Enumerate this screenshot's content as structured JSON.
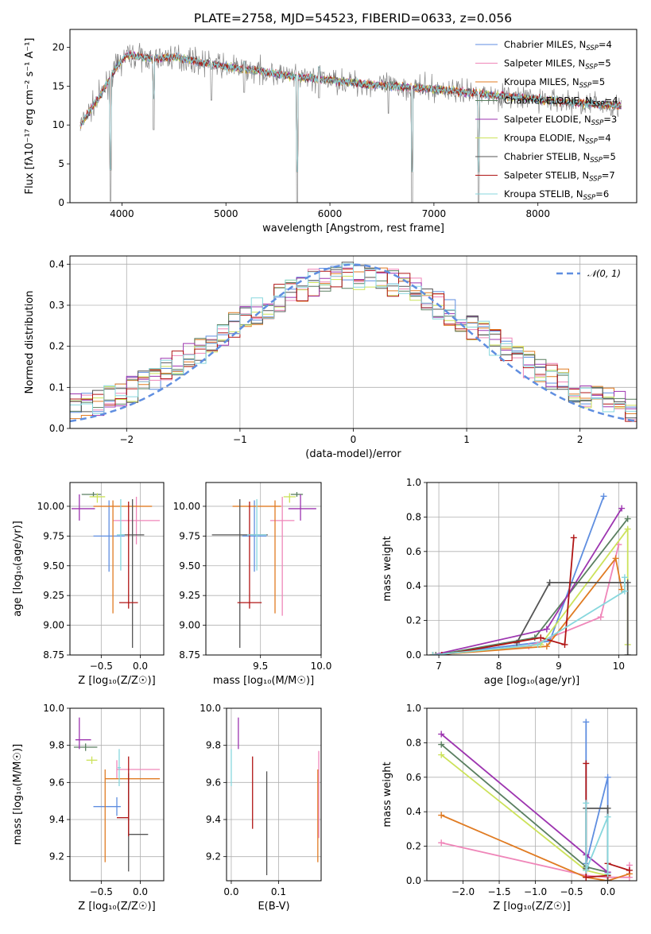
{
  "colors": {
    "Chabrier MILES": "#5f8ee0",
    "Salpeter MILES": "#ef86b9",
    "Kroupa MILES": "#e07b22",
    "Chabrier ELODIE": "#5a7f60",
    "Salpeter ELODIE": "#9d35b0",
    "Kroupa ELODIE": "#cce25a",
    "Chabrier STELIB": "#555555",
    "Salpeter STELIB": "#b01515",
    "Kroupa STELIB": "#87d7dd"
  },
  "chart_data": [
    {
      "id": "spectrum",
      "type": "line",
      "title": "PLATE=2758, MJD=54523, FIBERID=0633, z=0.056",
      "xlabel": "wavelength [Angstrom, rest frame]",
      "ylabel": "Flux [fλ10⁻¹⁷ erg cm⁻² s⁻¹ A⁻¹]",
      "xlim": [
        3500,
        8950
      ],
      "ylim": [
        0,
        22.3
      ],
      "xticks": [
        4000,
        5000,
        6000,
        7000,
        8000
      ],
      "yticks": [
        0,
        5,
        10,
        15,
        20
      ],
      "grid": false,
      "legend_position": "top-right",
      "data_series": {
        "name": "data",
        "color": "#808080"
      },
      "series": [
        {
          "name": "Chabrier MILES",
          "nssp": "4"
        },
        {
          "name": "Salpeter MILES",
          "nssp": "5"
        },
        {
          "name": "Kroupa MILES",
          "nssp": "5"
        },
        {
          "name": "Chabrier ELODIE",
          "nssp": "4"
        },
        {
          "name": "Salpeter ELODIE",
          "nssp": "3"
        },
        {
          "name": "Kroupa ELODIE",
          "nssp": "4"
        },
        {
          "name": "Chabrier STELIB",
          "nssp": "5"
        },
        {
          "name": "Salpeter STELIB",
          "nssp": "7"
        },
        {
          "name": "Kroupa STELIB",
          "nssp": "6"
        }
      ],
      "continuum": {
        "x": [
          3600,
          3700,
          3800,
          3950,
          4050,
          4300,
          4500,
          4800,
          5000,
          5300,
          5600,
          6000,
          6400,
          6800,
          7200,
          7600,
          8000,
          8400,
          8800
        ],
        "y": [
          10.0,
          12.0,
          14.0,
          17.5,
          19.0,
          18.5,
          18.8,
          18.0,
          17.5,
          17.0,
          16.3,
          15.8,
          15.2,
          14.8,
          14.4,
          13.8,
          13.3,
          12.8,
          12.5
        ]
      },
      "features": [
        {
          "x": 3890,
          "y": 0.2
        },
        {
          "x": 4305,
          "y": 9.4
        },
        {
          "x": 4860,
          "y": 13.2
        },
        {
          "x": 5175,
          "y": 14.2
        },
        {
          "x": 5685,
          "y": 0.0
        },
        {
          "x": 5895,
          "y": 13.5
        },
        {
          "x": 6563,
          "y": 11.5
        },
        {
          "x": 6790,
          "y": 0.0
        },
        {
          "x": 7430,
          "y": 0.0
        }
      ]
    },
    {
      "id": "residual-hist",
      "type": "histogram",
      "xlabel": "(data-model)/error",
      "ylabel": "Normed distribution",
      "xlim": [
        -2.5,
        2.5
      ],
      "ylim": [
        0,
        0.42
      ],
      "xticks": [
        -2,
        -1,
        0,
        1,
        2
      ],
      "yticks": [
        0.0,
        0.1,
        0.2,
        0.3,
        0.4
      ],
      "grid": true,
      "legend_position": "top-right",
      "reference_curve": {
        "name": "𝒩(0, 1)",
        "mean": 0,
        "sigma": 1,
        "color": "#5f8ee0",
        "style": "dashed"
      },
      "bin_width": 0.1
    },
    {
      "id": "age-vs-Z",
      "type": "errorbar",
      "xlabel": "Z [log₁₀(Z/Z☉)]",
      "ylabel": "age  [log₁₀(age/yr)]",
      "xlim": [
        -0.9,
        0.3
      ],
      "ylim": [
        8.75,
        10.2
      ],
      "xticks": [
        -0.5,
        0.0
      ],
      "yticks": [
        8.75,
        9.0,
        9.25,
        9.5,
        9.75,
        10.0
      ],
      "grid": true,
      "points": [
        {
          "series": "Chabrier MILES",
          "x": -0.4,
          "xerr": [
            0.2,
            0.2
          ],
          "y": 9.75,
          "yerr": [
            0.3,
            0.3
          ]
        },
        {
          "series": "Salpeter MILES",
          "x": -0.05,
          "xerr": [
            0.3,
            0.3
          ],
          "y": 9.88,
          "yerr": [
            0.2,
            0.2
          ]
        },
        {
          "series": "Kroupa MILES",
          "x": -0.35,
          "xerr": [
            0.25,
            0.5
          ],
          "y": 10.0,
          "yerr": [
            0.9,
            0.05
          ]
        },
        {
          "series": "Chabrier ELODIE",
          "x": -0.6,
          "xerr": [
            0.15,
            0.1
          ],
          "y": 10.1,
          "yerr": [
            0.02,
            0.02
          ]
        },
        {
          "series": "Salpeter ELODIE",
          "x": -0.78,
          "xerr": [
            0.1,
            0.2
          ],
          "y": 9.98,
          "yerr": [
            0.1,
            0.12
          ]
        },
        {
          "series": "Kroupa ELODIE",
          "x": -0.55,
          "xerr": [
            0.1,
            0.1
          ],
          "y": 10.08,
          "yerr": [
            0.05,
            0.03
          ]
        },
        {
          "series": "Chabrier STELIB",
          "x": -0.1,
          "xerr": [
            0.15,
            0.15
          ],
          "y": 9.76,
          "yerr": [
            0.95,
            0.3
          ]
        },
        {
          "series": "Salpeter STELIB",
          "x": -0.15,
          "xerr": [
            0.12,
            0.12
          ],
          "y": 9.19,
          "yerr": [
            0.05,
            0.85
          ]
        },
        {
          "series": "Kroupa STELIB",
          "x": -0.25,
          "xerr": [
            0.05,
            0.05
          ],
          "y": 9.76,
          "yerr": [
            0.3,
            0.3
          ]
        }
      ]
    },
    {
      "id": "age-vs-mass",
      "type": "errorbar",
      "xlabel": "mass [log₁₀(M/M☉)]",
      "ylabel": "",
      "xlim": [
        9.05,
        10.0
      ],
      "ylim": [
        8.75,
        10.2
      ],
      "xticks": [
        9.5,
        10.0
      ],
      "yticks": [
        8.75,
        9.0,
        9.25,
        9.5,
        9.75,
        10.0
      ],
      "grid": true,
      "points": [
        {
          "series": "Chabrier MILES",
          "x": 9.45,
          "xerr": [
            0.1,
            0.1
          ],
          "y": 9.75,
          "yerr": [
            0.3,
            0.3
          ]
        },
        {
          "series": "Salpeter MILES",
          "x": 9.68,
          "xerr": [
            0.1,
            0.1
          ],
          "y": 9.88,
          "yerr": [
            0.8,
            0.2
          ]
        },
        {
          "series": "Kroupa MILES",
          "x": 9.62,
          "xerr": [
            0.35,
            0.05
          ],
          "y": 10.0,
          "yerr": [
            0.9,
            0.05
          ]
        },
        {
          "series": "Chabrier ELODIE",
          "x": 9.8,
          "xerr": [
            0.05,
            0.05
          ],
          "y": 10.1,
          "yerr": [
            0.02,
            0.02
          ]
        },
        {
          "series": "Salpeter ELODIE",
          "x": 9.83,
          "xerr": [
            0.1,
            0.13
          ],
          "y": 9.98,
          "yerr": [
            0.1,
            0.12
          ]
        },
        {
          "series": "Kroupa ELODIE",
          "x": 9.74,
          "xerr": [
            0.05,
            0.05
          ],
          "y": 10.08,
          "yerr": [
            0.05,
            0.03
          ]
        },
        {
          "series": "Chabrier STELIB",
          "x": 9.33,
          "xerr": [
            0.23,
            0.23
          ],
          "y": 9.76,
          "yerr": [
            0.95,
            0.3
          ]
        },
        {
          "series": "Salpeter STELIB",
          "x": 9.41,
          "xerr": [
            0.1,
            0.1
          ],
          "y": 9.19,
          "yerr": [
            0.05,
            0.85
          ]
        },
        {
          "series": "Kroupa STELIB",
          "x": 9.47,
          "xerr": [
            0.08,
            0.08
          ],
          "y": 9.76,
          "yerr": [
            0.3,
            0.3
          ]
        }
      ]
    },
    {
      "id": "weight-vs-age",
      "type": "line",
      "xlabel": "age  [log₁₀(age/yr)]",
      "ylabel": "mass weight",
      "xlim": [
        6.8,
        10.3
      ],
      "ylim": [
        0,
        1.0
      ],
      "xticks": [
        7,
        8,
        9,
        10
      ],
      "yticks": [
        0.0,
        0.2,
        0.4,
        0.6,
        0.8,
        1.0
      ],
      "grid": true,
      "series": [
        {
          "name": "Chabrier MILES",
          "x": [
            6.9,
            8.85,
            9.75
          ],
          "y": [
            0.0,
            0.08,
            0.92
          ]
        },
        {
          "name": "Salpeter MILES",
          "x": [
            6.95,
            8.5,
            9.7,
            10.0
          ],
          "y": [
            0.0,
            0.05,
            0.22,
            0.64
          ]
        },
        {
          "name": "Kroupa MILES",
          "x": [
            6.9,
            8.8,
            9.95,
            10.05
          ],
          "y": [
            0.0,
            0.05,
            0.56,
            0.38
          ]
        },
        {
          "name": "Chabrier ELODIE",
          "x": [
            6.95,
            8.6,
            10.15
          ],
          "y": [
            0.0,
            0.1,
            0.79
          ]
        },
        {
          "name": "Salpeter ELODIE",
          "x": [
            6.9,
            8.8,
            10.05
          ],
          "y": [
            0.0,
            0.15,
            0.85
          ]
        },
        {
          "name": "Kroupa ELODIE",
          "x": [
            6.9,
            8.7,
            10.15,
            10.15
          ],
          "y": [
            0.0,
            0.06,
            0.73,
            0.06
          ]
        },
        {
          "name": "Chabrier STELIB",
          "x": [
            8.3,
            8.85,
            10.15,
            10.15
          ],
          "y": [
            0.07,
            0.42,
            0.42,
            0.0
          ]
        },
        {
          "name": "Salpeter STELIB",
          "x": [
            7.05,
            8.7,
            9.1,
            9.25
          ],
          "y": [
            0.0,
            0.1,
            0.06,
            0.68
          ]
        },
        {
          "name": "Kroupa STELIB",
          "x": [
            6.9,
            8.65,
            10.1,
            10.1
          ],
          "y": [
            0.0,
            0.06,
            0.37,
            0.45
          ]
        }
      ]
    },
    {
      "id": "mass-vs-Z",
      "type": "errorbar",
      "xlabel": "Z [log₁₀(Z/Z☉)]",
      "ylabel": "mass [log₁₀(M/M☉)]",
      "xlim": [
        -0.9,
        0.3
      ],
      "ylim": [
        9.07,
        10.0
      ],
      "xticks": [
        -0.5,
        0.0
      ],
      "yticks": [
        9.2,
        9.4,
        9.6,
        9.8,
        10.0
      ],
      "grid": true,
      "points": [
        {
          "series": "Chabrier MILES",
          "x": -0.3,
          "xerr": [
            0.3,
            0.05
          ],
          "y": 9.47,
          "yerr": [
            0.05,
            0.05
          ]
        },
        {
          "series": "Salpeter MILES",
          "x": -0.3,
          "xerr": [
            0.0,
            0.55
          ],
          "y": 9.67,
          "yerr": [
            0.05,
            0.05
          ]
        },
        {
          "series": "Kroupa MILES",
          "x": -0.45,
          "xerr": [
            0.0,
            0.7
          ],
          "y": 9.62,
          "yerr": [
            0.45,
            0.05
          ]
        },
        {
          "series": "Chabrier ELODIE",
          "x": -0.7,
          "xerr": [
            0.15,
            0.15
          ],
          "y": 9.79,
          "yerr": [
            0.02,
            0.02
          ]
        },
        {
          "series": "Salpeter ELODIE",
          "x": -0.78,
          "xerr": [
            0.05,
            0.15
          ],
          "y": 9.83,
          "yerr": [
            0.05,
            0.12
          ]
        },
        {
          "series": "Kroupa ELODIE",
          "x": -0.62,
          "xerr": [
            0.07,
            0.07
          ],
          "y": 9.72,
          "yerr": [
            0.02,
            0.02
          ]
        },
        {
          "series": "Chabrier STELIB",
          "x": -0.15,
          "xerr": [
            0.0,
            0.25
          ],
          "y": 9.32,
          "yerr": [
            0.2,
            0.33
          ]
        },
        {
          "series": "Salpeter STELIB",
          "x": -0.15,
          "xerr": [
            0.15,
            0.0
          ],
          "y": 9.41,
          "yerr": [
            0.1,
            0.33
          ]
        },
        {
          "series": "Kroupa STELIB",
          "x": -0.27,
          "xerr": [
            0.02,
            0.02
          ],
          "y": 9.68,
          "yerr": [
            0.1,
            0.1
          ]
        }
      ]
    },
    {
      "id": "mass-vs-ebv",
      "type": "errorbar",
      "xlabel": "E(B-V)",
      "ylabel": "",
      "xlim": [
        -0.01,
        0.19
      ],
      "ylim": [
        9.07,
        10.0
      ],
      "xticks": [
        0.0,
        0.1
      ],
      "yticks": [
        9.2,
        9.4,
        9.6,
        9.8,
        10.0
      ],
      "grid": true,
      "points": [
        {
          "series": "Kroupa STELIB",
          "x": 0.0,
          "y": 9.68,
          "yerr": [
            0.1,
            0.1
          ]
        },
        {
          "series": "Salpeter ELODIE",
          "x": 0.015,
          "y": 9.83,
          "yerr": [
            0.05,
            0.12
          ]
        },
        {
          "series": "Salpeter STELIB",
          "x": 0.045,
          "y": 9.55,
          "yerr": [
            0.2,
            0.19
          ]
        },
        {
          "series": "Chabrier STELIB",
          "x": 0.075,
          "y": 9.35,
          "yerr": [
            0.25,
            0.31
          ]
        },
        {
          "series": "Kroupa MILES",
          "x": 0.183,
          "y": 9.42,
          "yerr": [
            0.25,
            0.25
          ]
        },
        {
          "series": "Salpeter MILES",
          "x": 0.185,
          "y": 9.55,
          "yerr": [
            0.25,
            0.22
          ]
        }
      ]
    },
    {
      "id": "weight-vs-Z",
      "type": "line",
      "xlabel": "Z [log₁₀(Z/Z☉)]",
      "ylabel": "mass weight",
      "xlim": [
        -2.5,
        0.4
      ],
      "ylim": [
        0,
        1.0
      ],
      "xticks": [
        -2.0,
        -1.5,
        -1.0,
        -0.5,
        0.0
      ],
      "yticks": [
        0.0,
        0.2,
        0.4,
        0.6,
        0.8,
        1.0
      ],
      "grid": true,
      "series": [
        {
          "name": "Chabrier MILES",
          "x": [
            -0.3,
            -0.3,
            0.0,
            0.0
          ],
          "y": [
            0.92,
            0.1,
            0.6,
            0.02
          ]
        },
        {
          "name": "Salpeter MILES",
          "x": [
            -2.3,
            -0.3,
            0.0,
            0.3,
            0.3
          ],
          "y": [
            0.22,
            0.03,
            0.02,
            0.02,
            0.09
          ]
        },
        {
          "name": "Kroupa MILES",
          "x": [
            -2.3,
            -0.3,
            0.0,
            0.3
          ],
          "y": [
            0.38,
            0.02,
            0.0,
            0.04
          ]
        },
        {
          "name": "Chabrier ELODIE",
          "x": [
            -2.3,
            -0.3,
            0.0
          ],
          "y": [
            0.79,
            0.08,
            0.05
          ]
        },
        {
          "name": "Salpeter ELODIE",
          "x": [
            -2.3,
            -0.3,
            0.0
          ],
          "y": [
            0.85,
            0.15,
            0.05
          ]
        },
        {
          "name": "Kroupa ELODIE",
          "x": [
            -2.3,
            -0.3,
            0.0
          ],
          "y": [
            0.73,
            0.06,
            0.03
          ]
        },
        {
          "name": "Chabrier STELIB",
          "x": [
            -0.3,
            -0.3,
            0.0,
            0.0
          ],
          "y": [
            0.07,
            0.42,
            0.42,
            0.0
          ]
        },
        {
          "name": "Salpeter STELIB",
          "x": [
            -0.3,
            -0.3,
            0.0,
            0.0,
            0.3
          ],
          "y": [
            0.68,
            0.02,
            0.03,
            0.1,
            0.06
          ]
        },
        {
          "name": "Kroupa STELIB",
          "x": [
            -0.3,
            -0.3,
            0.0,
            0.0
          ],
          "y": [
            0.45,
            0.06,
            0.37,
            0.04
          ]
        }
      ]
    }
  ]
}
